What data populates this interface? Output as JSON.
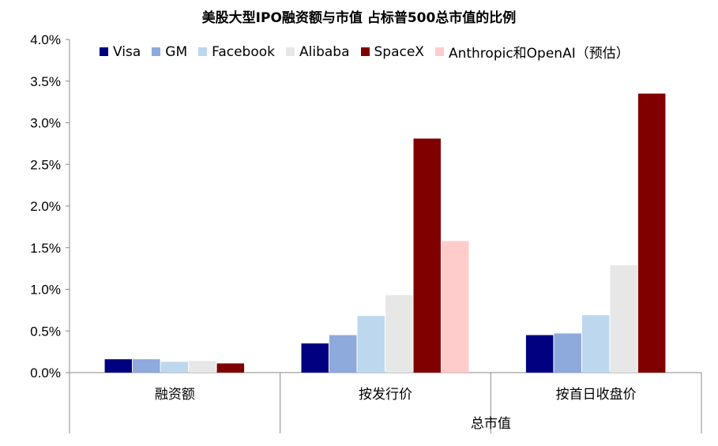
{
  "chart_data": {
    "type": "bar",
    "title": "美股大型IPO融资额与市值 占标普500总市值的比例",
    "categories": [
      "融资额",
      "按发行价",
      "按首日收盘价"
    ],
    "group_label": "总市值",
    "ylim": [
      0,
      4.0
    ],
    "yticks": [
      "0.0%",
      "0.5%",
      "1.0%",
      "1.5%",
      "2.0%",
      "2.5%",
      "3.0%",
      "3.5%",
      "4.0%"
    ],
    "legend_position": "top",
    "series": [
      {
        "name": "Visa",
        "color": "#000080",
        "values": [
          0.16,
          0.35,
          0.45
        ]
      },
      {
        "name": "GM",
        "color": "#8EA9DB",
        "values": [
          0.16,
          0.45,
          0.47
        ]
      },
      {
        "name": "Facebook",
        "color": "#BDD7EE",
        "values": [
          0.13,
          0.68,
          0.69
        ]
      },
      {
        "name": "Alibaba",
        "color": "#E7E7E7",
        "values": [
          0.14,
          0.93,
          1.29
        ]
      },
      {
        "name": "SpaceX",
        "color": "#800000",
        "values": [
          0.11,
          2.81,
          3.35
        ]
      },
      {
        "name": "Anthropic和OpenAI（预估）",
        "color": "#FFCCCC",
        "values": [
          null,
          1.58,
          null
        ]
      }
    ]
  }
}
